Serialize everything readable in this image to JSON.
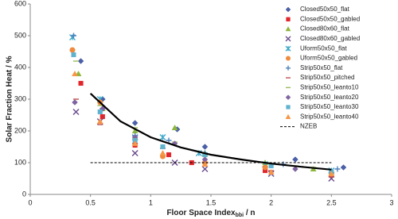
{
  "chart_data": {
    "type": "scatter",
    "xlabel": {
      "text": "Floor Space Index",
      "sub": "bbi",
      "tail": " / n"
    },
    "ylabel": "Solar Fraction Heat / %",
    "xlim": [
      0,
      3
    ],
    "xticks": [
      0,
      0.5,
      1,
      1.5,
      2,
      2.5,
      3
    ],
    "ylim": [
      0,
      600
    ],
    "yticks": [
      0,
      100,
      200,
      300,
      400,
      500,
      600
    ],
    "grid": false,
    "legend": "upper right",
    "series": [
      {
        "name": "Closed50x50_flat",
        "marker": "diamond",
        "color": "#4a5fa8",
        "x": [
          0.42,
          0.6,
          0.87,
          1.22,
          1.45,
          2.2,
          2.6
        ],
        "values": [
          420,
          300,
          225,
          205,
          150,
          110,
          85
        ]
      },
      {
        "name": "Closed50x50_gabled",
        "marker": "square",
        "color": "#e0262b",
        "x": [
          0.42,
          0.6,
          0.87,
          1.15,
          1.34,
          1.95,
          2.5
        ],
        "values": [
          350,
          245,
          155,
          125,
          100,
          75,
          60
        ]
      },
      {
        "name": "Closed80x60_flat",
        "marker": "triangle",
        "color": "#8cb63c",
        "x": [
          0.4,
          0.6,
          0.87,
          1.2,
          1.45,
          1.95,
          2.35
        ],
        "values": [
          380,
          270,
          200,
          210,
          130,
          100,
          80
        ]
      },
      {
        "name": "Closed80x60_gabled",
        "marker": "x",
        "color": "#6a4a8c",
        "x": [
          0.38,
          0.58,
          0.87,
          1.2,
          1.45,
          2.0,
          2.5
        ],
        "values": [
          260,
          230,
          130,
          100,
          80,
          65,
          50
        ]
      },
      {
        "name": "Uform50x50_flat",
        "marker": "star",
        "color": "#3fa9c9",
        "x": [
          0.35,
          0.58,
          0.87,
          1.1,
          1.4,
          1.95,
          2.5
        ],
        "values": [
          495,
          300,
          180,
          180,
          130,
          95,
          75
        ]
      },
      {
        "name": "Uform50x50_gabled",
        "marker": "circle",
        "color": "#f08a3c",
        "x": [
          0.35,
          0.58,
          0.87,
          1.1,
          1.45,
          1.95,
          2.5
        ],
        "values": [
          455,
          290,
          175,
          120,
          100,
          85,
          65
        ]
      },
      {
        "name": "Strip50x50_flat",
        "marker": "plus",
        "color": "#4f81bd",
        "x": [
          0.36,
          0.6,
          0.87,
          1.15,
          1.45,
          2.1,
          2.55
        ],
        "values": [
          500,
          270,
          185,
          170,
          130,
          95,
          80
        ]
      },
      {
        "name": "Strip50x50_pitched",
        "marker": "dash",
        "color": "#c0504d",
        "x": [
          0.38,
          0.58,
          0.87,
          1.1,
          1.45,
          2.0,
          2.5
        ],
        "values": [
          300,
          220,
          160,
          145,
          100,
          75,
          55
        ]
      },
      {
        "name": "Strip50x50_leanto10",
        "marker": "dash",
        "color": "#9bbb59",
        "x": [
          0.38,
          0.58,
          0.87,
          1.2,
          1.45,
          2.2,
          2.35
        ],
        "values": [
          420,
          280,
          210,
          165,
          120,
          90,
          85
        ]
      },
      {
        "name": "Strip50x50_leanto20",
        "marker": "diamond",
        "color": "#8064a2",
        "x": [
          0.37,
          0.6,
          0.87,
          1.2,
          1.45,
          2.2,
          2.5
        ],
        "values": [
          290,
          270,
          180,
          160,
          110,
          80,
          70
        ]
      },
      {
        "name": "Strip50x50_leanto30",
        "marker": "square",
        "color": "#5fb3cf",
        "x": [
          0.36,
          0.58,
          0.87,
          1.1,
          1.45,
          2.0,
          2.5
        ],
        "values": [
          440,
          260,
          170,
          150,
          125,
          90,
          70
        ]
      },
      {
        "name": "Strip50x50_leanto40",
        "marker": "triangle",
        "color": "#f79646",
        "x": [
          0.37,
          0.58,
          0.87,
          1.1,
          1.45,
          2.0,
          2.5
        ],
        "values": [
          380,
          230,
          160,
          130,
          95,
          70,
          65
        ]
      },
      {
        "marker": "line",
        "color": "#000000",
        "x": [
          0.5,
          0.75,
          1,
          1.25,
          1.5,
          1.75,
          2,
          2.25,
          2.5
        ],
        "values": [
          318,
          230,
          180,
          148,
          125,
          110,
          97,
          87,
          78
        ]
      },
      {
        "name": "NZEB",
        "marker": "dashed",
        "color": "#000000",
        "x": [
          0.5,
          2.5
        ],
        "values": [
          100,
          100
        ]
      }
    ]
  }
}
